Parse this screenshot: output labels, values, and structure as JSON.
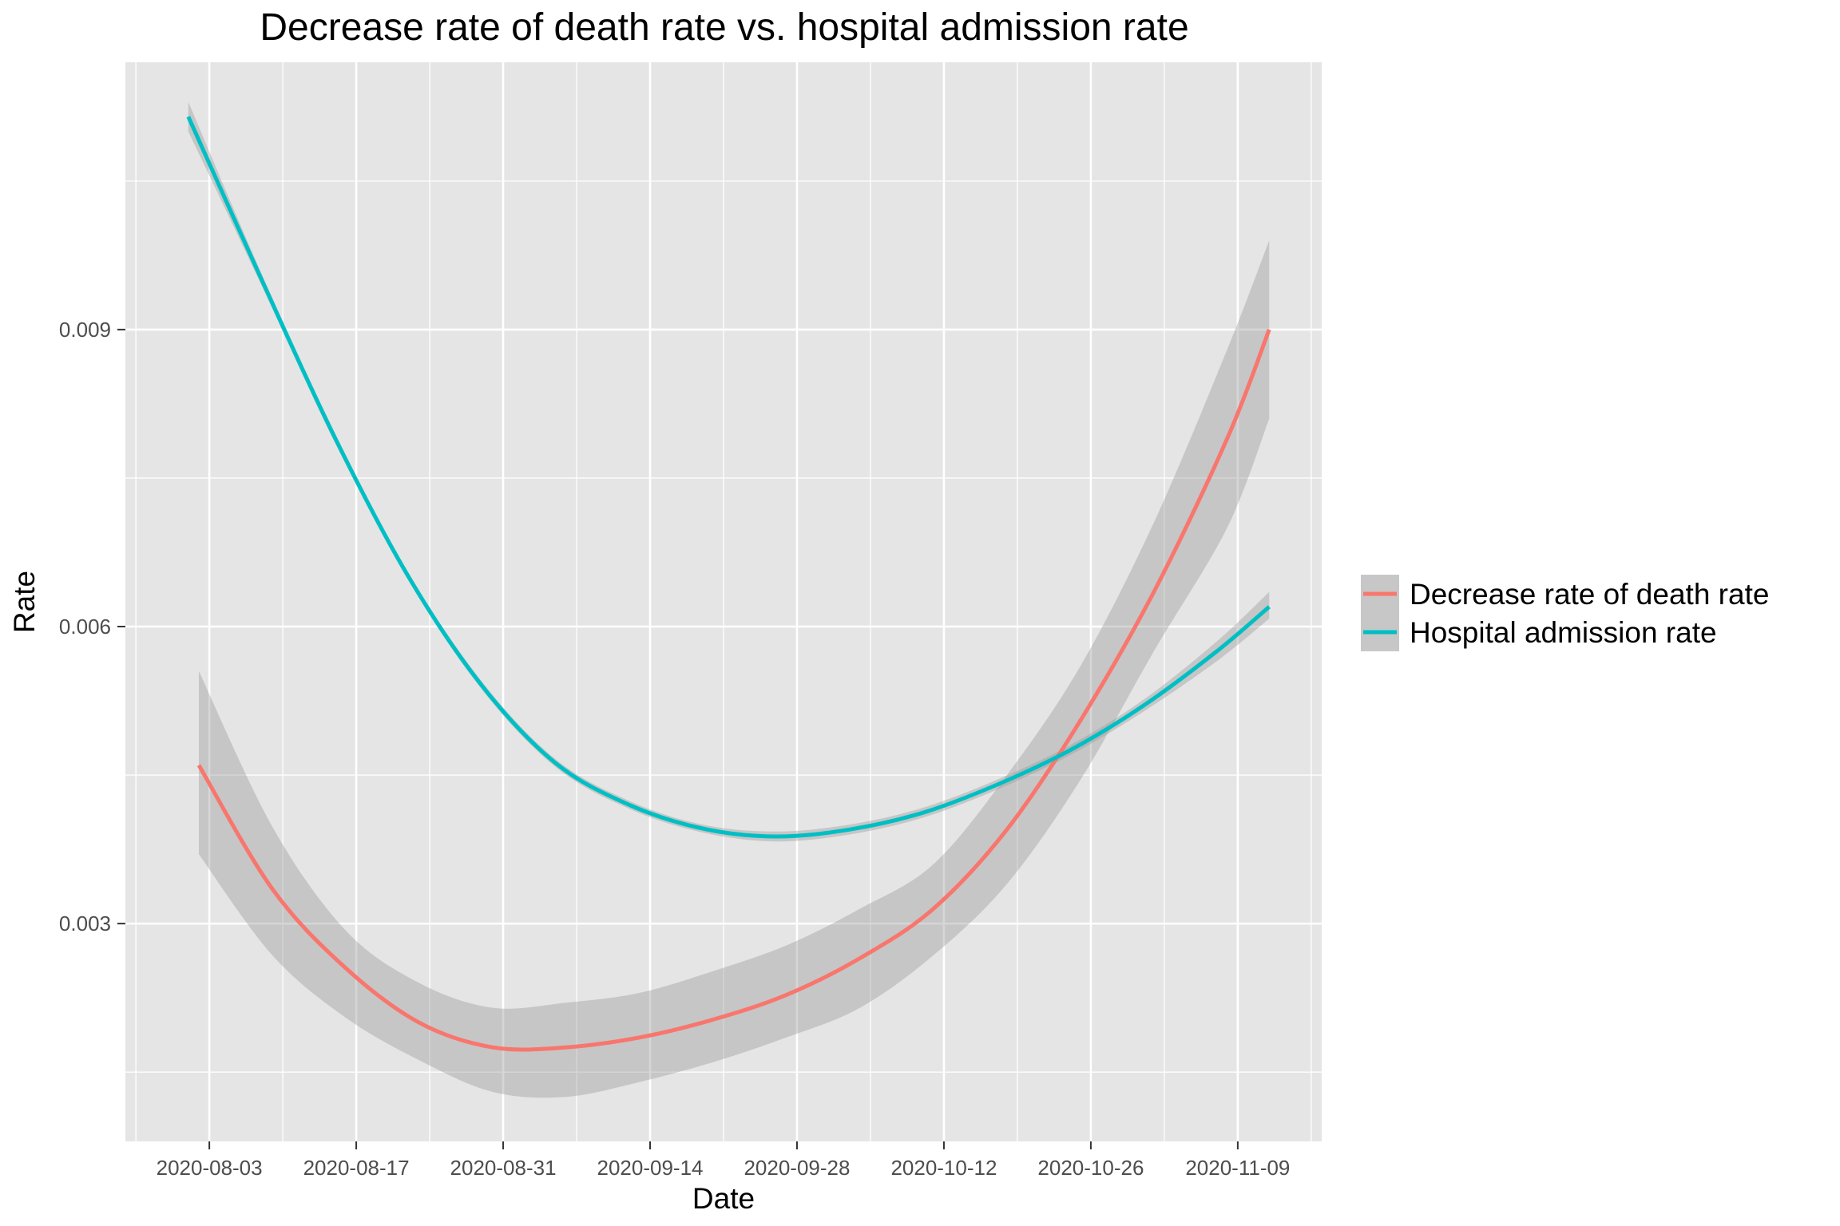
{
  "chart_data": {
    "type": "line",
    "title": "Decrease rate of death rate vs. hospital admission rate",
    "xlabel": "Date",
    "ylabel": "Rate",
    "x_ticks": [
      "2020-08-03",
      "2020-08-17",
      "2020-08-31",
      "2020-09-14",
      "2020-09-28",
      "2020-10-12",
      "2020-10-26",
      "2020-11-09"
    ],
    "y_ticks": [
      0.003,
      0.006,
      0.009
    ],
    "y_tick_labels": [
      "0.003",
      "0.006",
      "0.009"
    ],
    "xlim": [
      "2020-07-26",
      "2020-11-17"
    ],
    "ylim": [
      0.0008,
      0.0117
    ],
    "grid": true,
    "legend_position": "right",
    "series": [
      {
        "name": "Decrease rate of death rate",
        "color": "#F8766D",
        "points": [
          {
            "x": "2020-08-02",
            "y": 0.0046,
            "lo": 0.0037,
            "hi": 0.00555
          },
          {
            "x": "2020-08-09",
            "y": 0.00335,
            "lo": 0.00268,
            "hi": 0.00398
          },
          {
            "x": "2020-08-16",
            "y": 0.00255,
            "lo": 0.00205,
            "hi": 0.00293
          },
          {
            "x": "2020-08-23",
            "y": 0.002,
            "lo": 0.00162,
            "hi": 0.0024
          },
          {
            "x": "2020-08-30",
            "y": 0.00175,
            "lo": 0.0013,
            "hi": 0.00215
          },
          {
            "x": "2020-09-06",
            "y": 0.00175,
            "lo": 0.00125,
            "hi": 0.0022
          },
          {
            "x": "2020-09-13",
            "y": 0.00185,
            "lo": 0.0014,
            "hi": 0.0023
          },
          {
            "x": "2020-09-20",
            "y": 0.00203,
            "lo": 0.0016,
            "hi": 0.00252
          },
          {
            "x": "2020-09-27",
            "y": 0.00228,
            "lo": 0.00185,
            "hi": 0.00278
          },
          {
            "x": "2020-10-04",
            "y": 0.00265,
            "lo": 0.00215,
            "hi": 0.00315
          },
          {
            "x": "2020-10-11",
            "y": 0.00315,
            "lo": 0.00268,
            "hi": 0.0036
          },
          {
            "x": "2020-10-18",
            "y": 0.00395,
            "lo": 0.0034,
            "hi": 0.0045
          },
          {
            "x": "2020-10-25",
            "y": 0.00505,
            "lo": 0.00445,
            "hi": 0.0056
          },
          {
            "x": "2020-11-01",
            "y": 0.00635,
            "lo": 0.00575,
            "hi": 0.00705
          },
          {
            "x": "2020-11-08",
            "y": 0.0079,
            "lo": 0.007,
            "hi": 0.0088
          },
          {
            "x": "2020-11-12",
            "y": 0.009,
            "lo": 0.0081,
            "hi": 0.0099
          }
        ]
      },
      {
        "name": "Hospital admission rate",
        "color": "#00BFC4",
        "points": [
          {
            "x": "2020-08-01",
            "y": 0.01115,
            "lo": 0.011,
            "hi": 0.0113
          },
          {
            "x": "2020-08-08",
            "y": 0.0095,
            "lo": 0.00944,
            "hi": 0.00956
          },
          {
            "x": "2020-08-15",
            "y": 0.0079,
            "lo": 0.00785,
            "hi": 0.00795
          },
          {
            "x": "2020-08-22",
            "y": 0.0065,
            "lo": 0.00646,
            "hi": 0.00654
          },
          {
            "x": "2020-08-29",
            "y": 0.0054,
            "lo": 0.00536,
            "hi": 0.00544
          },
          {
            "x": "2020-09-05",
            "y": 0.00462,
            "lo": 0.00458,
            "hi": 0.00466
          },
          {
            "x": "2020-09-12",
            "y": 0.0042,
            "lo": 0.00416,
            "hi": 0.00424
          },
          {
            "x": "2020-09-19",
            "y": 0.00396,
            "lo": 0.00392,
            "hi": 0.004
          },
          {
            "x": "2020-09-26",
            "y": 0.00388,
            "lo": 0.00383,
            "hi": 0.00393
          },
          {
            "x": "2020-10-03",
            "y": 0.00395,
            "lo": 0.0039,
            "hi": 0.004
          },
          {
            "x": "2020-10-10",
            "y": 0.00412,
            "lo": 0.00407,
            "hi": 0.00417
          },
          {
            "x": "2020-10-17",
            "y": 0.0044,
            "lo": 0.00435,
            "hi": 0.00445
          },
          {
            "x": "2020-10-24",
            "y": 0.00475,
            "lo": 0.0047,
            "hi": 0.0048
          },
          {
            "x": "2020-10-31",
            "y": 0.0052,
            "lo": 0.00514,
            "hi": 0.00526
          },
          {
            "x": "2020-11-07",
            "y": 0.00575,
            "lo": 0.00565,
            "hi": 0.00585
          },
          {
            "x": "2020-11-12",
            "y": 0.0062,
            "lo": 0.00608,
            "hi": 0.00635
          }
        ]
      }
    ]
  },
  "style": {
    "panel_bg": "#E5E5E5",
    "grid_color": "#FFFFFF",
    "ribbon_color": "#999999",
    "tick_color": "#333333"
  }
}
